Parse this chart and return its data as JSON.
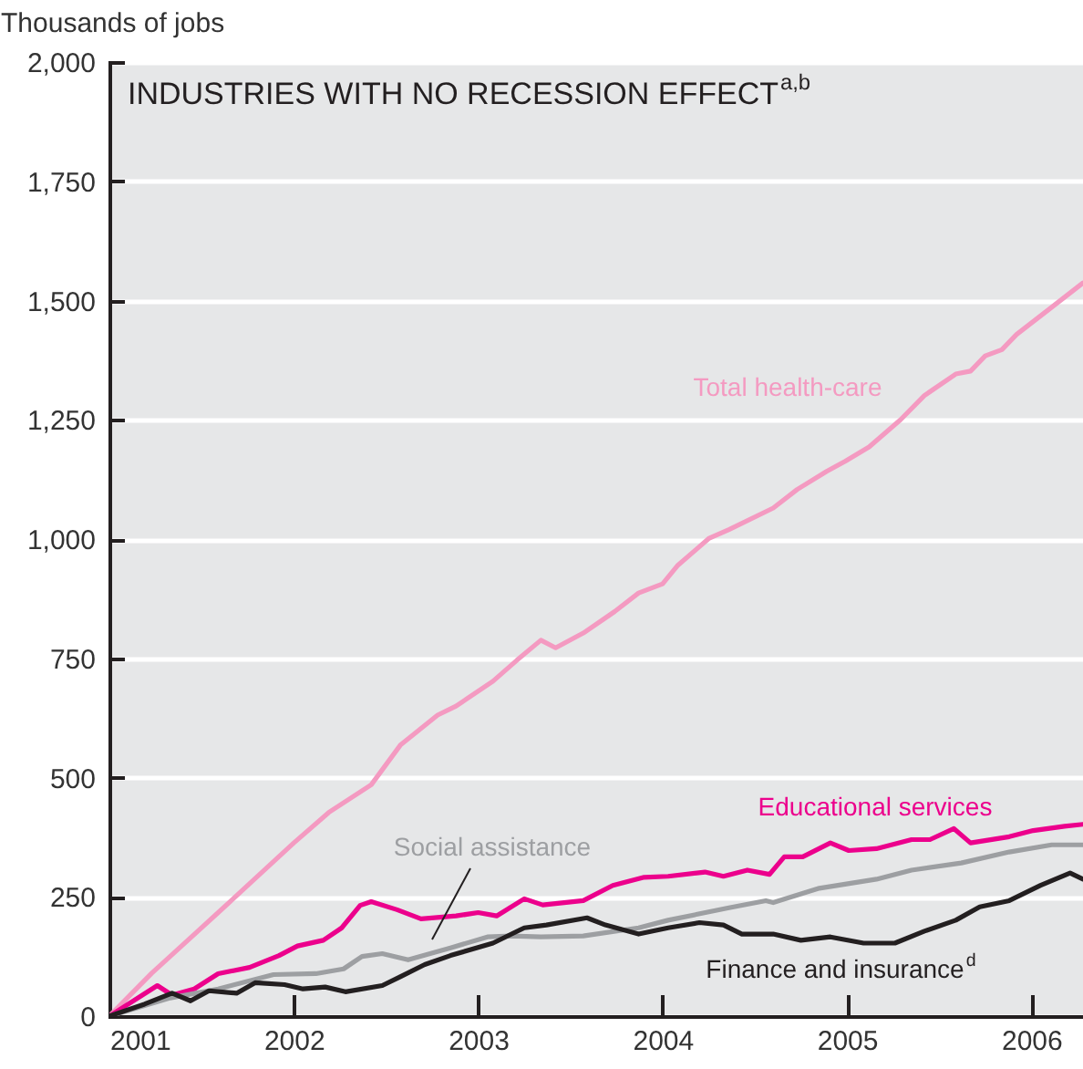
{
  "chart_data": {
    "type": "line",
    "title": "INDUSTRIES WITH NO RECESSION EFFECT$^{a,b}$",
    "ylabel": "Thousands of jobs",
    "xlim": [
      2001,
      2006.28
    ],
    "xticks": [
      2001,
      2002,
      2003,
      2004,
      2005,
      2006
    ],
    "ylim": [
      0,
      2000
    ],
    "yticks": [
      0,
      250,
      500,
      750,
      {
        "value": 1000,
        "label": "1,000"
      },
      {
        "value": 1250,
        "label": "1,250"
      },
      {
        "value": 1500,
        "label": "1,500"
      },
      {
        "value": 1750,
        "label": "1,750"
      },
      {
        "value": 2000,
        "label": "2,000"
      }
    ],
    "grid": "y",
    "line_style": "solid",
    "series": [
      {
        "name": "Total health-care",
        "color": "#f49ac1",
        "x": [
          2001,
          2001.23,
          2001.59,
          2002.0,
          2002.19,
          2002.42,
          2002.58,
          2002.68,
          2002.78,
          2002.88,
          2003.08,
          2003.21,
          2003.34,
          2003.42,
          2003.57,
          2003.74,
          2003.87,
          2004.0,
          2004.08,
          2004.25,
          2004.36,
          2004.6,
          2004.73,
          2004.89,
          2004.99,
          2005.12,
          2005.29,
          2005.42,
          2005.59,
          2005.67,
          2005.75,
          2005.84,
          2005.92,
          2006.11,
          2006.28
        ],
        "values": [
          0,
          90,
          217,
          363,
          427,
          485,
          569,
          600,
          631,
          650,
          702,
          746,
          788,
          772,
          803,
          848,
          887,
          906,
          944,
          1001,
          1020,
          1065,
          1104,
          1142,
          1163,
          1193,
          1250,
          1301,
          1346,
          1352,
          1384,
          1397,
          1429,
          1486,
          1537
        ]
      },
      {
        "name": "Educational services",
        "color": "#ec008c",
        "x": [
          2001,
          2001.26,
          2001.34,
          2001.46,
          2001.59,
          2001.76,
          2001.92,
          2002.02,
          2002.16,
          2002.26,
          2002.36,
          2002.42,
          2002.56,
          2002.69,
          2002.88,
          2003.0,
          2003.1,
          2003.25,
          2003.35,
          2003.57,
          2003.73,
          2003.9,
          2004.03,
          2004.23,
          2004.33,
          2004.46,
          2004.58,
          2004.66,
          2004.76,
          2004.91,
          2005.01,
          2005.16,
          2005.35,
          2005.45,
          2005.58,
          2005.67,
          2005.88,
          2006.01,
          2006.18,
          2006.28
        ],
        "values": [
          0,
          64,
          44,
          57,
          89,
          102,
          127,
          147,
          159,
          185,
          232,
          240,
          223,
          204,
          210,
          217,
          210,
          246,
          233,
          242,
          274,
          291,
          293,
          302,
          293,
          306,
          297,
          334,
          334,
          363,
          347,
          351,
          370,
          370,
          393,
          363,
          376,
          389,
          398,
          402
        ]
      },
      {
        "name": "Social assistance",
        "color": "#9d9fa2",
        "x": [
          2001,
          2001.33,
          2001.59,
          2001.89,
          2002.12,
          2002.27,
          2002.37,
          2002.48,
          2002.62,
          2002.85,
          2003.05,
          2003.18,
          2003.34,
          2003.57,
          2003.87,
          2004.03,
          2004.36,
          2004.56,
          2004.6,
          2004.85,
          2005.16,
          2005.35,
          2005.62,
          2005.88,
          2006.11,
          2006.28
        ],
        "values": [
          0,
          38,
          57,
          87,
          89,
          99,
          125,
          131,
          118,
          143,
          166,
          168,
          166,
          168,
          185,
          201,
          227,
          242,
          238,
          268,
          287,
          306,
          321,
          344,
          359,
          359
        ]
      },
      {
        "name": "Finance and insurance$^{d}$",
        "color": "#231f20",
        "x": [
          2001,
          2001.19,
          2001.34,
          2001.44,
          2001.54,
          2001.69,
          2001.79,
          2001.95,
          2002.05,
          2002.17,
          2002.28,
          2002.48,
          2002.58,
          2002.71,
          2002.85,
          2003.08,
          2003.25,
          2003.37,
          2003.59,
          2003.69,
          2003.87,
          2004.03,
          2004.2,
          2004.33,
          2004.43,
          2004.6,
          2004.75,
          2004.91,
          2005.09,
          2005.26,
          2005.42,
          2005.59,
          2005.72,
          2005.88,
          2006.05,
          2006.21,
          2006.28
        ],
        "values": [
          0,
          25,
          48,
          32,
          53,
          48,
          70,
          66,
          57,
          61,
          51,
          64,
          83,
          108,
          127,
          153,
          185,
          191,
          206,
          191,
          172,
          185,
          196,
          191,
          172,
          172,
          159,
          166,
          153,
          153,
          178,
          201,
          229,
          242,
          274,
          300,
          287
        ]
      }
    ]
  }
}
